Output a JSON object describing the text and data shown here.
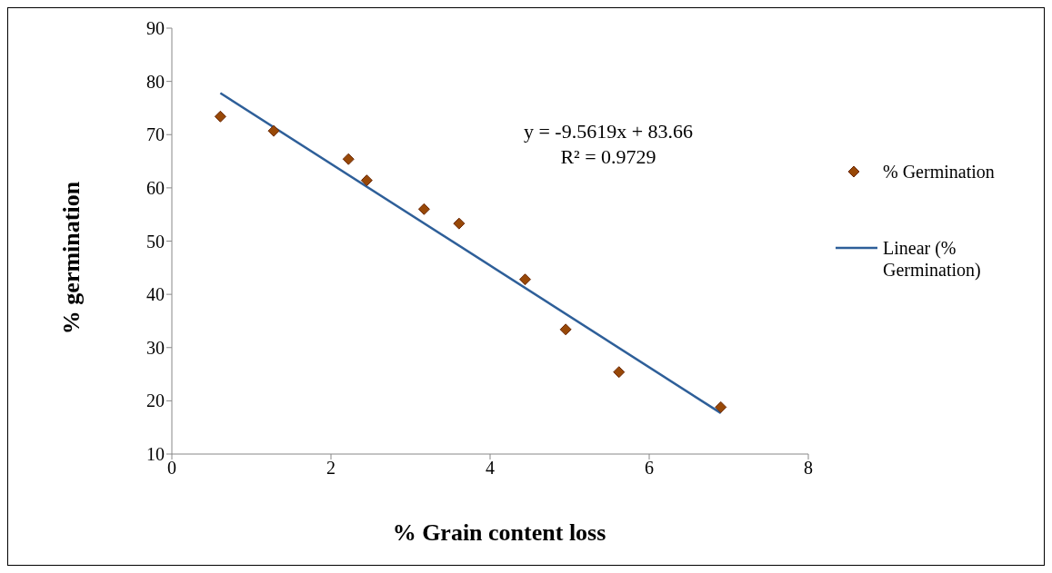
{
  "chart_data": {
    "type": "scatter",
    "xlabel": "% Grain content loss",
    "ylabel": "% germination",
    "xlim": [
      0,
      8
    ],
    "xticks": [
      0,
      2,
      4,
      6,
      8
    ],
    "ylim": [
      10,
      90
    ],
    "yticks": [
      10,
      20,
      30,
      40,
      50,
      60,
      70,
      80,
      90
    ],
    "grid": false,
    "legend": "right",
    "marker": "diamond",
    "annotations": [
      "y = -9.5619x + 83.66",
      "R² = 0.9729"
    ],
    "series": [
      {
        "name": "% Germination",
        "color": "#984807",
        "x": [
          0.61,
          1.28,
          2.22,
          2.45,
          3.17,
          3.61,
          4.44,
          4.95,
          5.62,
          6.9
        ],
        "values": [
          73.4,
          70.7,
          65.4,
          61.4,
          56.0,
          53.3,
          42.8,
          33.4,
          25.4,
          18.8
        ]
      },
      {
        "name": "Linear (% Germination)",
        "type": "line",
        "color": "#2e5f99",
        "marker": "none",
        "line_style": "solid",
        "x": [
          0.61,
          6.9
        ],
        "values": [
          77.8,
          17.7
        ]
      }
    ]
  }
}
